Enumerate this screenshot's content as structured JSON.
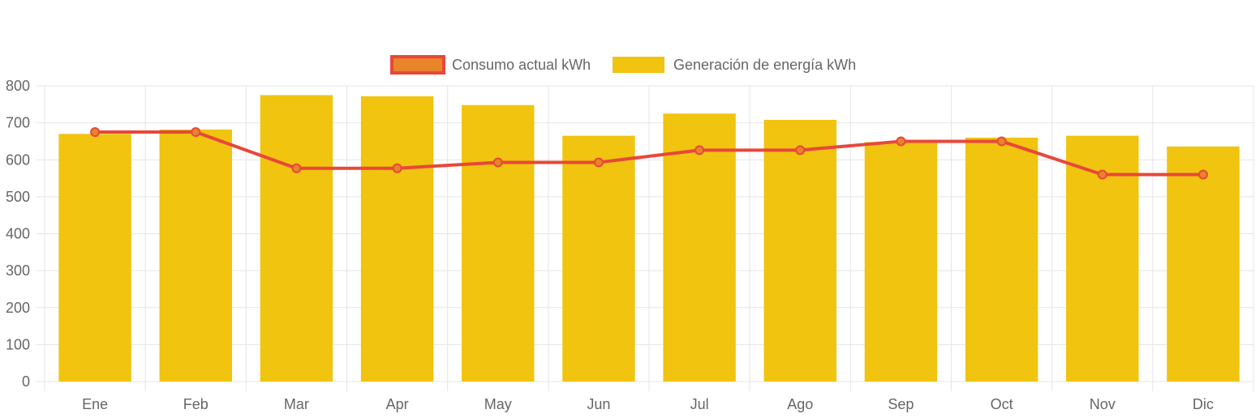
{
  "chart_data": {
    "type": "bar",
    "categories": [
      "Ene",
      "Feb",
      "Mar",
      "Apr",
      "May",
      "Jun",
      "Jul",
      "Ago",
      "Sep",
      "Oct",
      "Nov",
      "Dic"
    ],
    "series": [
      {
        "name": "Consumo actual kWh",
        "type": "line",
        "values": [
          675,
          675,
          577,
          577,
          593,
          593,
          626,
          626,
          650,
          650,
          560,
          560
        ],
        "color": "#e8473a",
        "point_color": "#e8842a"
      },
      {
        "name": "Generación de energía kWh",
        "type": "bar",
        "values": [
          670,
          682,
          775,
          772,
          748,
          665,
          725,
          708,
          648,
          660,
          665,
          636
        ],
        "color": "#f0c40f"
      }
    ],
    "ylim": [
      0,
      800
    ],
    "yticks": [
      "0",
      "100",
      "200",
      "300",
      "400",
      "500",
      "600",
      "700",
      "800"
    ],
    "grid": true,
    "legend_position": "top-center",
    "colors": {
      "grid": "#e5e5e5",
      "text": "#666666",
      "legend_line_fill": "#e8842a",
      "legend_line_border": "#e8473a"
    }
  }
}
